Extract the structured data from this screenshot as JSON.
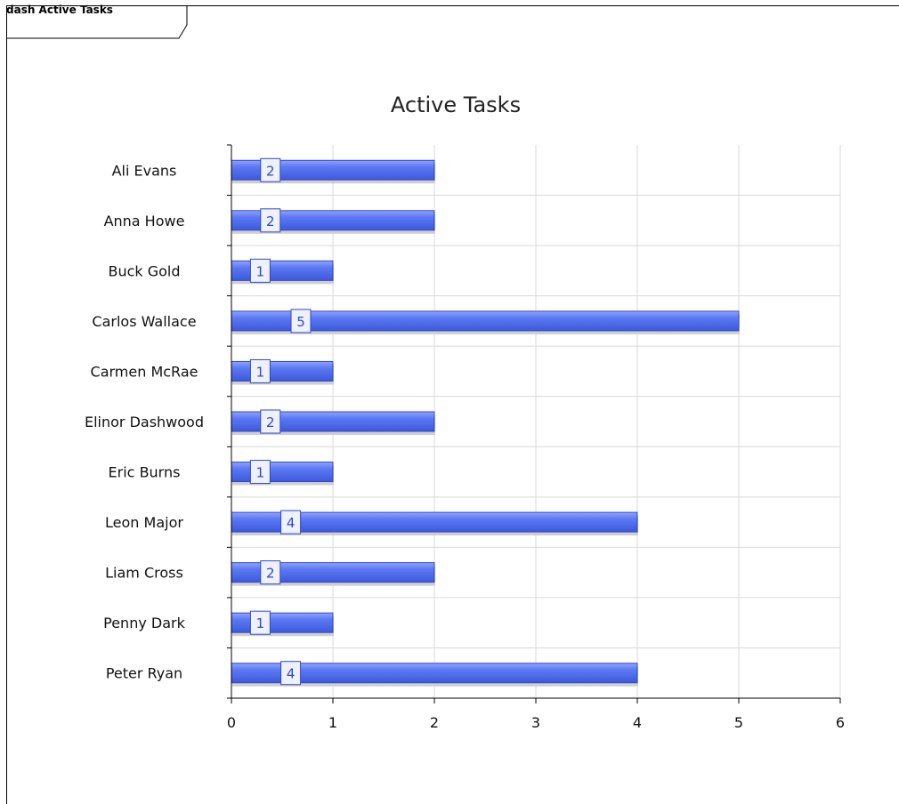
{
  "frame": {
    "title": "dash Active Tasks"
  },
  "chart_data": {
    "type": "bar",
    "orientation": "horizontal",
    "title": "Active Tasks",
    "categories": [
      "Ali Evans",
      "Anna Howe",
      "Buck Gold",
      "Carlos Wallace",
      "Carmen McRae",
      "Elinor Dashwood",
      "Eric Burns",
      "Leon Major",
      "Liam Cross",
      "Penny Dark",
      "Peter Ryan"
    ],
    "values": [
      2,
      2,
      1,
      5,
      1,
      2,
      1,
      4,
      2,
      1,
      4
    ],
    "xlabel": "",
    "ylabel": "",
    "xlim": [
      0,
      6
    ],
    "xticks": [
      0,
      1,
      2,
      3,
      4,
      5,
      6
    ],
    "grid": true,
    "bar_color": "#4f6ef0"
  }
}
